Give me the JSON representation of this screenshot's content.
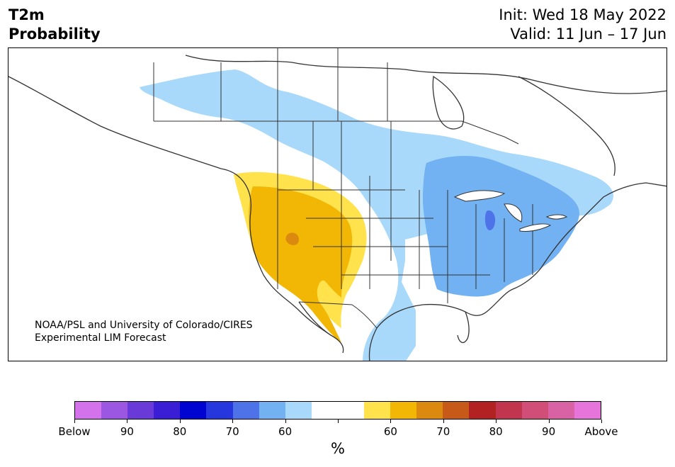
{
  "header": {
    "title_line1": "T2m",
    "title_line2": "Probability",
    "init": "Init: Wed 18 May 2022",
    "valid": "Valid: 11 Jun – 17 Jun"
  },
  "credit": {
    "line1": "NOAA/PSL and University of Colorado/CIRES",
    "line2": "Experimental LIM Forecast"
  },
  "map": {
    "region": "North America",
    "colors": {
      "land": "#fffffc",
      "border": "#333333",
      "below_60": "#a8d8fa",
      "below_70": "#72b1f2",
      "below_80": "#4e73e8",
      "above_60": "#ffe24c",
      "above_70": "#f2b705",
      "above_80": "#db8a0f"
    }
  },
  "colorbar": {
    "unit": "%",
    "colors": [
      "#d372ea",
      "#9b57e2",
      "#6a3ad8",
      "#3a1ed6",
      "#0004d0",
      "#2637dd",
      "#4e73e8",
      "#72b1f2",
      "#a8d8fa",
      "#ffffff",
      "#ffffff",
      "#ffe24c",
      "#f2b705",
      "#db8a0f",
      "#c75a18",
      "#b22222",
      "#c2354f",
      "#d04e78",
      "#d962a5",
      "#e774da"
    ],
    "labels": [
      "Below",
      "90",
      "80",
      "70",
      "60",
      "60",
      "70",
      "80",
      "90",
      "Above"
    ],
    "label_positions": [
      0,
      2,
      4,
      6,
      8,
      12,
      14,
      16,
      18,
      20
    ]
  }
}
